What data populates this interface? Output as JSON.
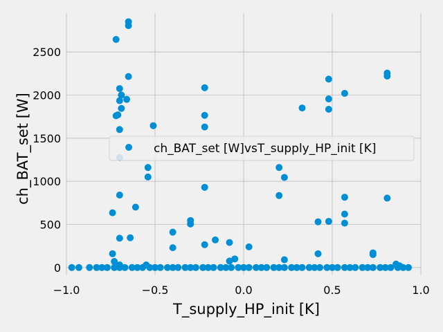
{
  "chart_data": {
    "type": "scatter",
    "title": "",
    "xlabel": "T_supply_HP_init [K]",
    "ylabel": "ch_BAT_set [W]",
    "xlim": [
      -1.0,
      1.0
    ],
    "ylim": [
      -90,
      2950
    ],
    "xticks": [
      -1.0,
      -0.5,
      0.0,
      0.5,
      1.0
    ],
    "xtick_labels": [
      "−1.0",
      "−0.5",
      "0.0",
      "0.5",
      "1.0"
    ],
    "yticks": [
      0,
      500,
      1000,
      1500,
      2000,
      2500
    ],
    "ytick_labels": [
      "0",
      "500",
      "1000",
      "1500",
      "2000",
      "2500"
    ],
    "grid": true,
    "legend_position": "center-right",
    "marker_color": "#008fd5",
    "background_color": "#f0f0f0",
    "series": [
      {
        "name": "ch_BAT_set [W]vsT_supply_HP_init [K]",
        "x": [
          -0.97,
          -0.93,
          -0.87,
          -0.83,
          -0.8,
          -0.77,
          -0.73,
          -0.7,
          -0.67,
          -0.63,
          -0.6,
          -0.57,
          -0.53,
          -0.5,
          -0.47,
          -0.43,
          -0.4,
          -0.37,
          -0.33,
          -0.3,
          -0.27,
          -0.23,
          -0.2,
          -0.17,
          -0.13,
          -0.1,
          -0.07,
          -0.03,
          0.0,
          0.03,
          0.07,
          0.1,
          0.13,
          0.17,
          0.2,
          0.23,
          0.27,
          0.3,
          0.33,
          0.37,
          0.4,
          0.43,
          0.47,
          0.5,
          0.53,
          0.57,
          0.6,
          0.63,
          0.67,
          0.7,
          0.73,
          0.77,
          0.8,
          0.83,
          0.87,
          0.9,
          0.93,
          -0.65,
          -0.65,
          -0.72,
          -0.65,
          -0.7,
          -0.69,
          -0.7,
          -0.66,
          -0.69,
          -0.72,
          -0.71,
          -0.51,
          -0.7,
          -0.7,
          -0.54,
          -0.54,
          -0.7,
          -0.61,
          -0.74,
          -0.3,
          -0.3,
          -0.4,
          -0.7,
          -0.64,
          -0.4,
          -0.74,
          -0.73,
          -0.7,
          -0.55,
          -0.22,
          -0.22,
          -0.22,
          -0.22,
          -0.22,
          -0.16,
          -0.08,
          -0.08,
          -0.05,
          0.03,
          0.33,
          0.48,
          0.48,
          0.48,
          0.57,
          0.81,
          0.81,
          0.81,
          0.57,
          0.57,
          0.57,
          0.2,
          0.2,
          0.23,
          0.42,
          0.48,
          0.42,
          0.73,
          0.73,
          0.23,
          0.86,
          0.88
        ],
        "y": [
          0,
          0,
          0,
          0,
          0,
          0,
          0,
          0,
          0,
          0,
          0,
          0,
          0,
          0,
          0,
          0,
          0,
          0,
          0,
          0,
          0,
          0,
          0,
          0,
          0,
          0,
          0,
          0,
          0,
          0,
          0,
          0,
          0,
          0,
          0,
          0,
          0,
          0,
          0,
          0,
          0,
          0,
          0,
          0,
          0,
          0,
          0,
          0,
          0,
          0,
          0,
          0,
          0,
          0,
          0,
          0,
          0,
          2850,
          2805,
          2645,
          2215,
          2075,
          2000,
          1935,
          1950,
          1845,
          1760,
          1770,
          1645,
          1600,
          1275,
          1160,
          1050,
          840,
          700,
          635,
          545,
          505,
          410,
          340,
          345,
          230,
          160,
          70,
          30,
          30,
          2085,
          1765,
          1630,
          930,
          265,
          320,
          290,
          75,
          100,
          240,
          1850,
          2185,
          1955,
          1835,
          2020,
          2255,
          2220,
          805,
          815,
          620,
          515,
          1160,
          835,
          1045,
          530,
          535,
          160,
          170,
          150,
          90,
          40,
          20
        ]
      }
    ]
  }
}
